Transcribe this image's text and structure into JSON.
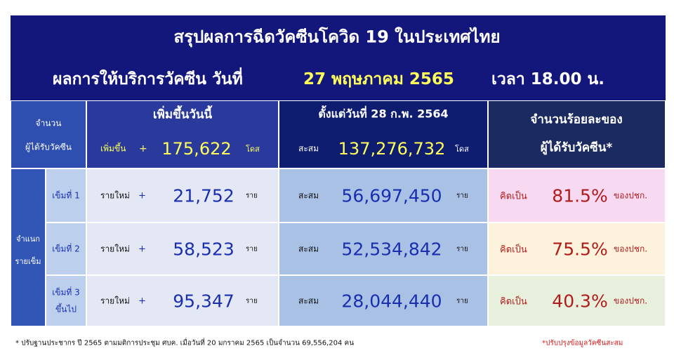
{
  "header": {
    "title": "สรุปผลการฉีดวัคซีนโควิด 19 ในประเทศไทย",
    "subtitle": {
      "label": "ผลการให้บริการวัคซีน  วันที่",
      "date": "27 พฤษภาคม 2565",
      "time": "เวลา 18.00 น."
    }
  },
  "table": {
    "corner": [
      "จำนวน",
      "ผู้ได้รับวัคซีน"
    ],
    "today": {
      "heading": "เพิ่มขึ้นวันนี้",
      "label": "เพิ่มขึ้น",
      "sign": "+",
      "value": "175,622",
      "unit": "โดส"
    },
    "cumulative": {
      "heading": "ตั้งแต่วันที่ 28 ก.พ. 2564",
      "label": "สะสม",
      "value": "137,276,732",
      "unit": "โดส"
    },
    "percent_heading": [
      "จำนวนร้อยละของ",
      "ผู้ได้รับวัคซีน*"
    ],
    "row_group": [
      "จำแนก",
      "รายเข็ม"
    ],
    "rows": [
      {
        "dose": [
          "เข็มที่ 1"
        ],
        "new_label": "รายใหม่",
        "sign": "+",
        "new": "21,752",
        "new_unit": "ราย",
        "cum_label": "สะสม",
        "cum": "56,697,450",
        "cum_unit": "ราย",
        "pct_label": "คิดเป็น",
        "pct": "81.5%",
        "pct_unit": "ของปชก."
      },
      {
        "dose": [
          "เข็มที่ 2"
        ],
        "new_label": "รายใหม่",
        "sign": "+",
        "new": "58,523",
        "new_unit": "ราย",
        "cum_label": "สะสม",
        "cum": "52,534,842",
        "cum_unit": "ราย",
        "pct_label": "คิดเป็น",
        "pct": "75.5%",
        "pct_unit": "ของปชก."
      },
      {
        "dose": [
          "เข็มที่ 3",
          "ขึ้นไป"
        ],
        "new_label": "รายใหม่",
        "sign": "+",
        "new": "95,347",
        "new_unit": "ราย",
        "cum_label": "สะสม",
        "cum": "28,044,440",
        "cum_unit": "ราย",
        "pct_label": "คิดเป็น",
        "pct": "40.3%",
        "pct_unit": "ของปชก."
      }
    ]
  },
  "footnotes": {
    "population": "* ปรับฐานประชากร ปี 2565 ตามมติการประชุม ศบค. เมื่อวันที่ 20  มกราคม 2565 เป็นจำนวน 69,556,204 คน",
    "update": "*ปรับปรุงข้อมูลวัคซีนสะสม"
  }
}
